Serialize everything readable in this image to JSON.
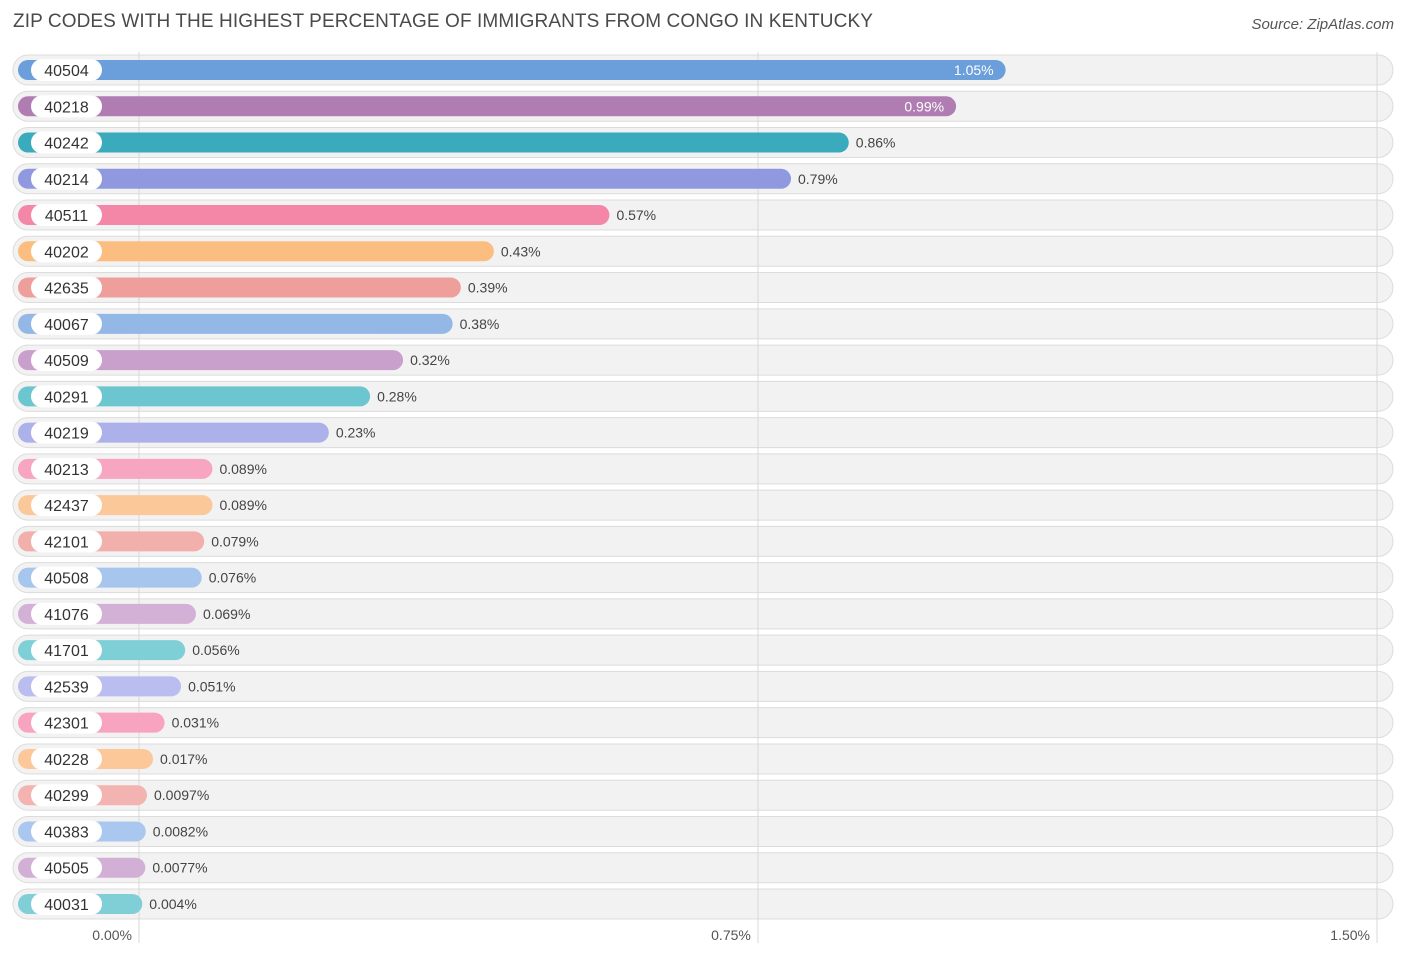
{
  "title": "ZIP CODES WITH THE HIGHEST PERCENTAGE OF IMMIGRANTS FROM CONGO IN KENTUCKY",
  "source": "Source: ZipAtlas.com",
  "chart_data": {
    "type": "bar",
    "orientation": "horizontal",
    "title": "ZIP CODES WITH THE HIGHEST PERCENTAGE OF IMMIGRANTS FROM CONGO IN KENTUCKY",
    "xlim": [
      0,
      1.5
    ],
    "ticks": [
      0,
      0.75,
      1.5
    ],
    "tick_labels": [
      "0.00%",
      "0.75%",
      "1.50%"
    ],
    "grid": true,
    "categories": [
      "40504",
      "40218",
      "40242",
      "40214",
      "40511",
      "40202",
      "42635",
      "40067",
      "40509",
      "40291",
      "40219",
      "40213",
      "42437",
      "42101",
      "40508",
      "41076",
      "41701",
      "42539",
      "42301",
      "40228",
      "40299",
      "40383",
      "40505",
      "40031"
    ],
    "values": [
      1.05,
      0.99,
      0.86,
      0.79,
      0.57,
      0.43,
      0.39,
      0.38,
      0.32,
      0.28,
      0.23,
      0.089,
      0.089,
      0.079,
      0.076,
      0.069,
      0.056,
      0.051,
      0.031,
      0.017,
      0.0097,
      0.0082,
      0.0077,
      0.004
    ],
    "value_labels": [
      "1.05%",
      "0.99%",
      "0.86%",
      "0.79%",
      "0.57%",
      "0.43%",
      "0.39%",
      "0.38%",
      "0.32%",
      "0.28%",
      "0.23%",
      "0.089%",
      "0.089%",
      "0.079%",
      "0.076%",
      "0.069%",
      "0.056%",
      "0.051%",
      "0.031%",
      "0.017%",
      "0.0097%",
      "0.0082%",
      "0.0077%",
      "0.004%"
    ],
    "colors": [
      "#6a9fdc",
      "#b07db3",
      "#3aabbd",
      "#9099e0",
      "#f487a7",
      "#fbbe80",
      "#ee9f9c",
      "#94b8e6",
      "#c9a0cc",
      "#6cc6cf",
      "#acb1ea",
      "#f7a5c1",
      "#fbc999",
      "#f2b0ad",
      "#a6c6ee",
      "#d3b0d5",
      "#7fcfd6",
      "#b9bdf0",
      "#f8a3c0",
      "#fcc89a",
      "#f3b3b0",
      "#a9c7ef",
      "#d2b0d6",
      "#80ced6"
    ]
  }
}
